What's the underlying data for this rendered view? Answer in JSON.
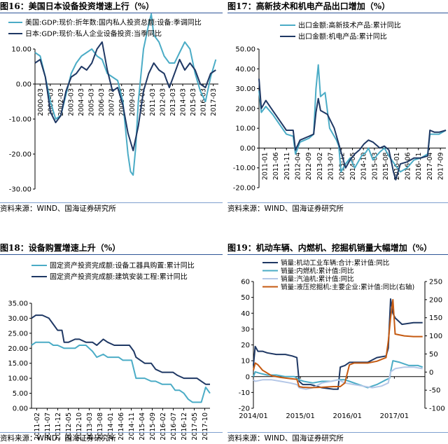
{
  "source_note": "资料来源：WIND、国海证券研究所",
  "chart_data": [
    {
      "id": "c16",
      "type": "line",
      "title": "图16：美国日本设备投资增速上行（%）",
      "y_left": {
        "min": -30,
        "max": 10,
        "ticks": [
          -30,
          -20,
          -10,
          0,
          10
        ],
        "tick_labels": [
          "-30.00",
          "-20.00",
          "-10.00",
          "0.00",
          "10.00"
        ]
      },
      "x_labels": [
        "2000-03",
        "2001-03",
        "2002-03",
        "2003-03",
        "2004-03",
        "2005-03",
        "2006-03",
        "2007-03",
        "2008-03",
        "2009-03",
        "2010-03",
        "2011-03",
        "2012-03",
        "2013-03",
        "2014-03",
        "2015-03",
        "2016-03",
        "2017-03"
      ],
      "x_start": 2000.0,
      "x_end": 2017.75,
      "series": [
        {
          "name": "美国:GDP:现价:折年数:国内私人投资总额:设备:季调同比",
          "color": "#4bacc6",
          "x": [
            2000.0,
            2000.5,
            2001.0,
            2001.5,
            2002.0,
            2002.5,
            2003.0,
            2003.5,
            2004.0,
            2004.5,
            2005.0,
            2005.5,
            2006.0,
            2006.5,
            2007.0,
            2007.5,
            2008.0,
            2008.5,
            2009.0,
            2009.25,
            2009.5,
            2009.75,
            2010.0,
            2010.5,
            2011.0,
            2011.25,
            2011.5,
            2012.0,
            2012.5,
            2013.0,
            2013.5,
            2014.0,
            2014.5,
            2015.0,
            2015.5,
            2016.0,
            2016.5,
            2017.0,
            2017.5
          ],
          "y": [
            9,
            8,
            2,
            -5,
            -10,
            -9,
            -3,
            3,
            6,
            8,
            9,
            10,
            8,
            7,
            3,
            2,
            1,
            -5,
            -20,
            -25,
            -26,
            -18,
            -5,
            10,
            17,
            20,
            14,
            12,
            8,
            6,
            6,
            9,
            12,
            10,
            3,
            -2,
            -5,
            2,
            7
          ]
        },
        {
          "name": "日本:GDP:现价:私人企业设备投资:当季同比",
          "color": "#1f3864",
          "x": [
            2000.0,
            2000.5,
            2001.0,
            2001.5,
            2002.0,
            2002.5,
            2003.0,
            2003.5,
            2004.0,
            2004.5,
            2005.0,
            2005.5,
            2006.0,
            2006.5,
            2007.0,
            2007.5,
            2008.0,
            2008.5,
            2009.0,
            2009.5,
            2010.0,
            2010.5,
            2011.0,
            2011.5,
            2012.0,
            2012.5,
            2013.0,
            2013.5,
            2014.0,
            2014.5,
            2015.0,
            2015.5,
            2016.0,
            2016.5,
            2017.0,
            2017.5
          ],
          "y": [
            6,
            7,
            2,
            -8,
            -11,
            -9,
            -2,
            2,
            3,
            5,
            4,
            6,
            10,
            12,
            4,
            -2,
            -1,
            -6,
            -14,
            -19,
            -12,
            -2,
            3,
            6,
            4,
            3,
            -1,
            3,
            7,
            4,
            6,
            4,
            0,
            -1,
            3,
            4
          ]
        }
      ]
    },
    {
      "id": "c17",
      "type": "line",
      "title": "图17：高新技术和机电产品出口增加（%）",
      "y_left": {
        "min": -20,
        "max": 50,
        "ticks": [
          -20,
          -10,
          0,
          10,
          20,
          30,
          40,
          50
        ],
        "tick_labels": [
          "-20.00",
          "-10.00",
          "0.00",
          "10.00",
          "20.00",
          "30.00",
          "40.00",
          "50.00"
        ]
      },
      "x_labels": [
        "2011-01",
        "2011-06",
        "2011-11",
        "2012-04",
        "2012-09",
        "2013-02",
        "2013-07",
        "2013-12",
        "2014-05",
        "2014-10",
        "2015-03",
        "2015-08",
        "2016-01",
        "2016-06",
        "2016-11",
        "2017-04",
        "2017-09"
      ],
      "x_start": 0,
      "x_end": 82,
      "series": [
        {
          "name": "出口金额:高新技术产品:累计同比",
          "color": "#4bacc6",
          "x": [
            0,
            1,
            3,
            6,
            9,
            12,
            15,
            16,
            18,
            22,
            24,
            25,
            26,
            27,
            29,
            31,
            34,
            35,
            36,
            38,
            40,
            42,
            45,
            47,
            48,
            50,
            53,
            55,
            57,
            60,
            62,
            65,
            68,
            71,
            74,
            75,
            77,
            79,
            82
          ],
          "y": [
            29,
            18,
            21,
            17,
            12,
            7,
            6,
            -3,
            3,
            5,
            7,
            30,
            42,
            26,
            28,
            10,
            4,
            1,
            -12,
            -8,
            -5,
            -10,
            -4,
            -2,
            0,
            -6,
            -2,
            0,
            -4,
            -9,
            -12,
            -10,
            -6,
            -5,
            -3,
            7,
            7,
            7,
            9
          ]
        },
        {
          "name": "出口金额:机电产品:累计同比",
          "color": "#1f3864",
          "x": [
            0,
            1,
            3,
            6,
            9,
            12,
            15,
            16,
            18,
            22,
            24,
            25,
            26,
            27,
            30,
            33,
            35,
            36,
            38,
            40,
            42,
            44,
            46,
            48,
            50,
            53,
            55,
            57,
            59,
            60,
            62,
            65,
            68,
            71,
            74,
            75,
            77,
            79,
            82
          ],
          "y": [
            35,
            20,
            24,
            19,
            14,
            9,
            9,
            -1,
            4,
            6,
            7,
            18,
            25,
            19,
            17,
            10,
            2,
            -2,
            -10,
            -6,
            -3,
            -1,
            2,
            4,
            3,
            0,
            1,
            -1,
            -12,
            -16,
            -8,
            -7,
            -5,
            -5,
            -4,
            9,
            8,
            8,
            9
          ]
        }
      ]
    },
    {
      "id": "c18",
      "type": "line",
      "title": "图18：设备购置增速上升（%）",
      "y_left": {
        "min": 0,
        "max": 35,
        "ticks": [
          0,
          5,
          10,
          15,
          20,
          25,
          30,
          35
        ],
        "tick_labels": [
          "0.00",
          "5.00",
          "10.00",
          "15.00",
          "20.00",
          "25.00",
          "30.00",
          "35.00"
        ]
      },
      "x_labels": [
        "2011-02",
        "2011-07",
        "2011-12",
        "2012-05",
        "2012-10",
        "2013-03",
        "2013-08",
        "2014-01",
        "2014-06",
        "2014-11",
        "2015-04",
        "2015-09",
        "2016-02",
        "2016-07",
        "2016-12",
        "2017-05",
        "2017-10"
      ],
      "x_start": 0,
      "x_end": 82,
      "series": [
        {
          "name": "固定资产投资完成额:设备工器具购置:累计同比",
          "color": "#4bacc6",
          "x": [
            0,
            2,
            5,
            8,
            10,
            12,
            15,
            18,
            20,
            22,
            25,
            28,
            30,
            33,
            35,
            37,
            40,
            42,
            44,
            46,
            48,
            50,
            52,
            55,
            57,
            60,
            62,
            64,
            66,
            68,
            70,
            72,
            74,
            76,
            78,
            80,
            82
          ],
          "y": [
            21,
            22,
            22,
            22,
            21,
            21,
            20,
            20,
            20,
            21,
            21,
            19,
            17,
            18,
            17,
            17,
            17,
            16,
            16,
            16,
            10,
            10,
            10,
            9,
            9,
            8,
            8,
            8,
            6,
            6,
            5,
            3,
            2,
            2,
            2,
            7,
            5
          ]
        },
        {
          "name": "固定资产投资完成额:建筑安装工程:累计同比",
          "color": "#1f3864",
          "x": [
            0,
            2,
            5,
            8,
            10,
            12,
            14,
            15,
            17,
            20,
            22,
            25,
            28,
            30,
            33,
            35,
            38,
            40,
            42,
            45,
            47,
            48,
            50,
            52,
            55,
            57,
            60,
            63,
            65,
            67,
            70,
            72,
            74,
            76,
            78,
            80,
            82
          ],
          "y": [
            30,
            31,
            31,
            30,
            28,
            26,
            26,
            22,
            22,
            23,
            23,
            22,
            22,
            21,
            23,
            22,
            21,
            21,
            21,
            21,
            19,
            17,
            16,
            15,
            15,
            13,
            12,
            12,
            12,
            11,
            10,
            10,
            10,
            10,
            9,
            8,
            8
          ]
        }
      ]
    },
    {
      "id": "c19",
      "type": "line",
      "title": "图19：机动车辆、内燃机、挖掘机销量大幅增加（%）",
      "y_left": {
        "min": -20,
        "max": 60,
        "ticks": [
          -20,
          -10,
          0,
          10,
          20,
          30,
          40,
          50,
          60
        ],
        "tick_labels": [
          "-20",
          "-10",
          "0",
          "10",
          "20",
          "30",
          "40",
          "50",
          "60"
        ]
      },
      "y_right": {
        "min": -100,
        "max": 250,
        "ticks": [
          -100,
          -50,
          0,
          50,
          100,
          150,
          200,
          250
        ],
        "tick_labels": [
          "-100",
          "-50",
          "0",
          "50",
          "100",
          "150",
          "200",
          "250"
        ]
      },
      "x_labels": [
        "2014/01",
        "2015/01",
        "2016/01",
        "2017/01"
      ],
      "x_start": 2014.0,
      "x_end": 2017.75,
      "series": [
        {
          "name": "销量:机动工业车辆:合计:累计值:同比",
          "color": "#1f3864",
          "axis": "left",
          "x": [
            2014.0,
            2014.04,
            2014.1,
            2014.2,
            2014.3,
            2014.5,
            2014.7,
            2014.85,
            2014.95,
            2015.0,
            2015.08,
            2015.25,
            2015.5,
            2015.75,
            2015.85,
            2015.9,
            2016.0,
            2016.1,
            2016.2,
            2016.5,
            2016.7,
            2016.9,
            2016.95,
            2017.0,
            2017.05,
            2017.1,
            2017.25,
            2017.5,
            2017.7
          ],
          "y": [
            7,
            19,
            16,
            16,
            15,
            14,
            14,
            13,
            12,
            -3,
            -5,
            -5,
            -7,
            -8,
            -8,
            6,
            7,
            9,
            9,
            9,
            12,
            13,
            18,
            49,
            40,
            37,
            33,
            34,
            34
          ]
        },
        {
          "name": "销量:内燃机:累计值:同比",
          "color": "#4bacc6",
          "axis": "left",
          "x": [
            2014.0,
            2014.04,
            2014.15,
            2014.3,
            2014.5,
            2014.7,
            2014.9,
            2014.95,
            2015.0,
            2015.1,
            2015.3,
            2015.5,
            2015.7,
            2015.85,
            2015.95,
            2016.0,
            2016.1,
            2016.3,
            2016.5,
            2016.7,
            2016.9,
            2016.98,
            2017.0,
            2017.05,
            2017.2,
            2017.4,
            2017.6,
            2017.7
          ],
          "y": [
            0,
            3,
            2,
            1,
            1,
            0,
            0,
            -1,
            -2,
            -3,
            -4,
            -3,
            -3,
            -2,
            -2,
            -2,
            -3,
            -5,
            -7,
            -5,
            -2,
            -1,
            3,
            10,
            9,
            7,
            7,
            6
          ]
        },
        {
          "name": "销量:汽油机:累计值:同比",
          "color": "#b4c7e7",
          "axis": "left",
          "x": [
            2014.0,
            2014.04,
            2014.2,
            2014.4,
            2014.6,
            2014.8,
            2014.95,
            2015.0,
            2015.15,
            2015.3,
            2015.5,
            2015.7,
            2015.85,
            2016.0,
            2016.2,
            2016.4,
            2016.6,
            2016.8,
            2016.95,
            2017.0,
            2017.1,
            2017.3,
            2017.5,
            2017.7
          ],
          "y": [
            -2,
            -3,
            -2,
            -2,
            -3,
            -4,
            -5,
            -7,
            -8,
            -7,
            -4,
            -3,
            -2,
            -4,
            -5,
            -6,
            -7,
            -6,
            -4,
            3,
            5,
            6,
            6,
            5
          ]
        },
        {
          "name": "销量:液压挖掘机:主要企业:累计值:同比(右轴)",
          "color": "#c55a11",
          "axis": "right",
          "x": [
            2014.0,
            2014.04,
            2014.1,
            2014.2,
            2014.4,
            2014.6,
            2014.8,
            2014.95,
            2015.0,
            2015.08,
            2015.25,
            2015.5,
            2015.75,
            2015.9,
            2016.0,
            2016.1,
            2016.2,
            2016.5,
            2016.7,
            2016.9,
            2016.95,
            2017.0,
            2017.05,
            2017.1,
            2017.3,
            2017.5,
            2017.7
          ],
          "y": [
            5,
            25,
            20,
            5,
            -10,
            -15,
            -18,
            -20,
            -40,
            -42,
            -43,
            -42,
            -40,
            -40,
            -30,
            20,
            25,
            25,
            30,
            40,
            85,
            150,
            200,
            105,
            100,
            98,
            98
          ]
        }
      ]
    }
  ]
}
